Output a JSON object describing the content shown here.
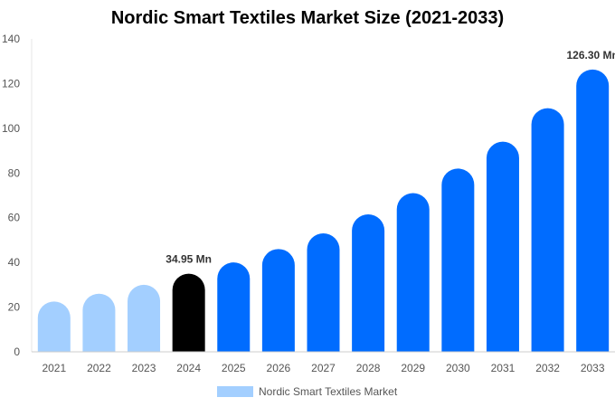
{
  "chart_data": {
    "type": "bar",
    "title": "Nordic Smart Textiles Market Size (2021-2033)",
    "categories": [
      "2021",
      "2022",
      "2023",
      "2024",
      "2025",
      "2026",
      "2027",
      "2028",
      "2029",
      "2030",
      "2031",
      "2032",
      "2033"
    ],
    "series": [
      {
        "name": "Nordic Smart Textiles Market",
        "values": [
          22.5,
          26,
          30,
          34.95,
          40,
          46,
          53,
          61.5,
          71,
          82,
          94,
          109,
          126.3
        ]
      }
    ],
    "data_labels": [
      {
        "category": "2024",
        "text": "34.95 Mn"
      },
      {
        "category": "2033",
        "text": "126.30 Mn"
      }
    ],
    "ylim": [
      0,
      140
    ],
    "yticks": [
      0,
      20,
      40,
      60,
      80,
      100,
      120,
      140
    ],
    "grid": false,
    "legend_position": "bottom",
    "colors": {
      "historical": "#a3cfff",
      "current": "#000000",
      "forecast": "#006cff",
      "legend": "#a3cfff"
    },
    "bar_color_groups": [
      "historical",
      "historical",
      "historical",
      "current",
      "forecast",
      "forecast",
      "forecast",
      "forecast",
      "forecast",
      "forecast",
      "forecast",
      "forecast",
      "forecast"
    ]
  }
}
